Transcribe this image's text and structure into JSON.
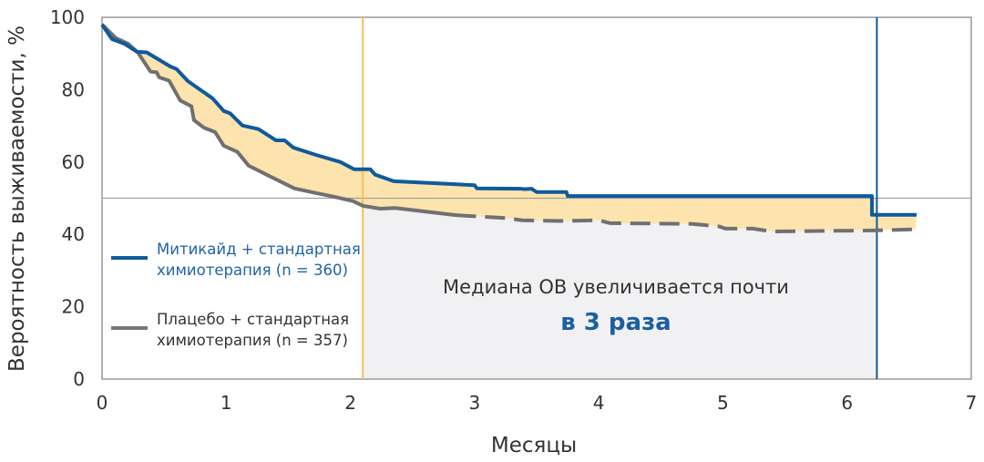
{
  "chart_data": {
    "type": "line",
    "title": "",
    "xlabel": "Месяцы",
    "ylabel": "Вероятность выживаемости, %",
    "xlim": [
      0,
      7
    ],
    "ylim": [
      0,
      100
    ],
    "xticks": [
      "0",
      "1",
      "2",
      "3",
      "4",
      "5",
      "6",
      "7"
    ],
    "yticks": [
      "0",
      "20",
      "40",
      "60",
      "80",
      "100"
    ],
    "reference_line_y": 50,
    "median_lines_x": {
      "placebo": 2.1,
      "mitikaid": 6.24
    },
    "colors": {
      "mitikaid": "#0f5a9c",
      "placebo": "#707070",
      "gap_fill": "#fde4ae",
      "median_area": "#f1f1f3",
      "placebo_median_line": "#f5c060"
    },
    "series": [
      {
        "name": "Митикайд + стандартная химиотерапия (n = 360)",
        "name_lines": [
          "Митикайд + стандартная",
          "химиотерапия (n = 360)"
        ],
        "x": [
          0,
          0.08,
          0.18,
          0.28,
          0.36,
          0.55,
          0.6,
          0.69,
          0.89,
          0.98,
          1.03,
          1.13,
          1.26,
          1.4,
          1.47,
          1.54,
          1.72,
          1.92,
          2.03,
          2.16,
          2.2,
          2.35,
          3.0,
          3.02,
          3.38,
          3.4,
          3.46,
          3.5,
          3.74,
          3.75,
          6.2,
          6.2,
          6.56
        ],
        "y": [
          98,
          94,
          92.7,
          90.5,
          90.3,
          86.4,
          85.7,
          82.4,
          77.6,
          74.1,
          73.5,
          70.1,
          69.1,
          66,
          66,
          64,
          62,
          60,
          58,
          58,
          56.5,
          54.7,
          53.6,
          52.7,
          52.6,
          52.5,
          52.6,
          51.7,
          51.7,
          50.6,
          50.6,
          45.4,
          45.4
        ]
      },
      {
        "name": "Плацебо + стандартная химиотерапия (n = 357)",
        "name_lines": [
          "Плацебо + стандартная",
          "химиотерапия (n = 357)"
        ],
        "x": [
          0,
          0.11,
          0.21,
          0.29,
          0.39,
          0.44,
          0.46,
          0.54,
          0.63,
          0.72,
          0.74,
          0.82,
          0.91,
          0.98,
          1.09,
          1.18,
          1.36,
          1.55,
          1.7,
          1.87,
          2.02,
          2.1,
          2.24,
          2.36,
          2.85,
          3.26,
          3.38,
          3.68,
          4.0,
          4.09,
          4.75,
          4.97,
          5.02,
          5.24,
          5.39,
          6.22,
          6.55
        ],
        "y": [
          98,
          94.3,
          92.7,
          90.2,
          85,
          84.8,
          83.4,
          82.5,
          77,
          75.4,
          71.6,
          69.5,
          68.3,
          64.5,
          62.8,
          59,
          55.9,
          52.7,
          51.6,
          50.4,
          49.2,
          47.9,
          47.1,
          47.3,
          45.3,
          44.5,
          43.9,
          43.7,
          43.9,
          43.1,
          42.9,
          42.2,
          41.6,
          41.6,
          40.8,
          41.1,
          41.4
        ],
        "dashed_from_x": 2.85
      }
    ],
    "annotation": {
      "line1": "Медиана ОВ увеличивается почти",
      "line2": "в 3 раза"
    }
  }
}
